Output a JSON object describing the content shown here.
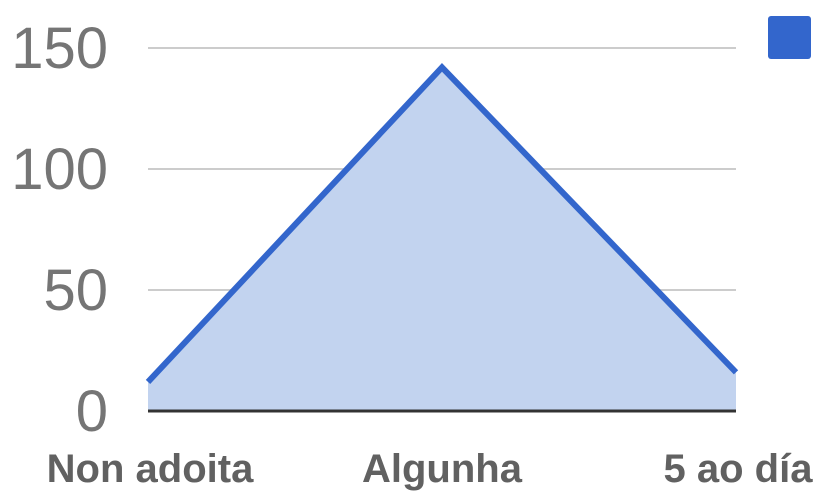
{
  "chart_data": {
    "type": "area",
    "categories": [
      "Non adoita",
      "Algunha",
      "5 ao día"
    ],
    "series": [
      {
        "values": [
          12,
          142,
          16
        ]
      }
    ],
    "ylim": [
      0,
      150
    ],
    "y_ticks": [
      "0",
      "50",
      "100",
      "150"
    ],
    "grid": true,
    "legend_position": "top-right",
    "colors": {
      "line": "#3366cc",
      "fill": "#c2d3ef",
      "grid": "#cccccc",
      "baseline": "#333333",
      "legend_swatch": "#3366cc"
    }
  }
}
